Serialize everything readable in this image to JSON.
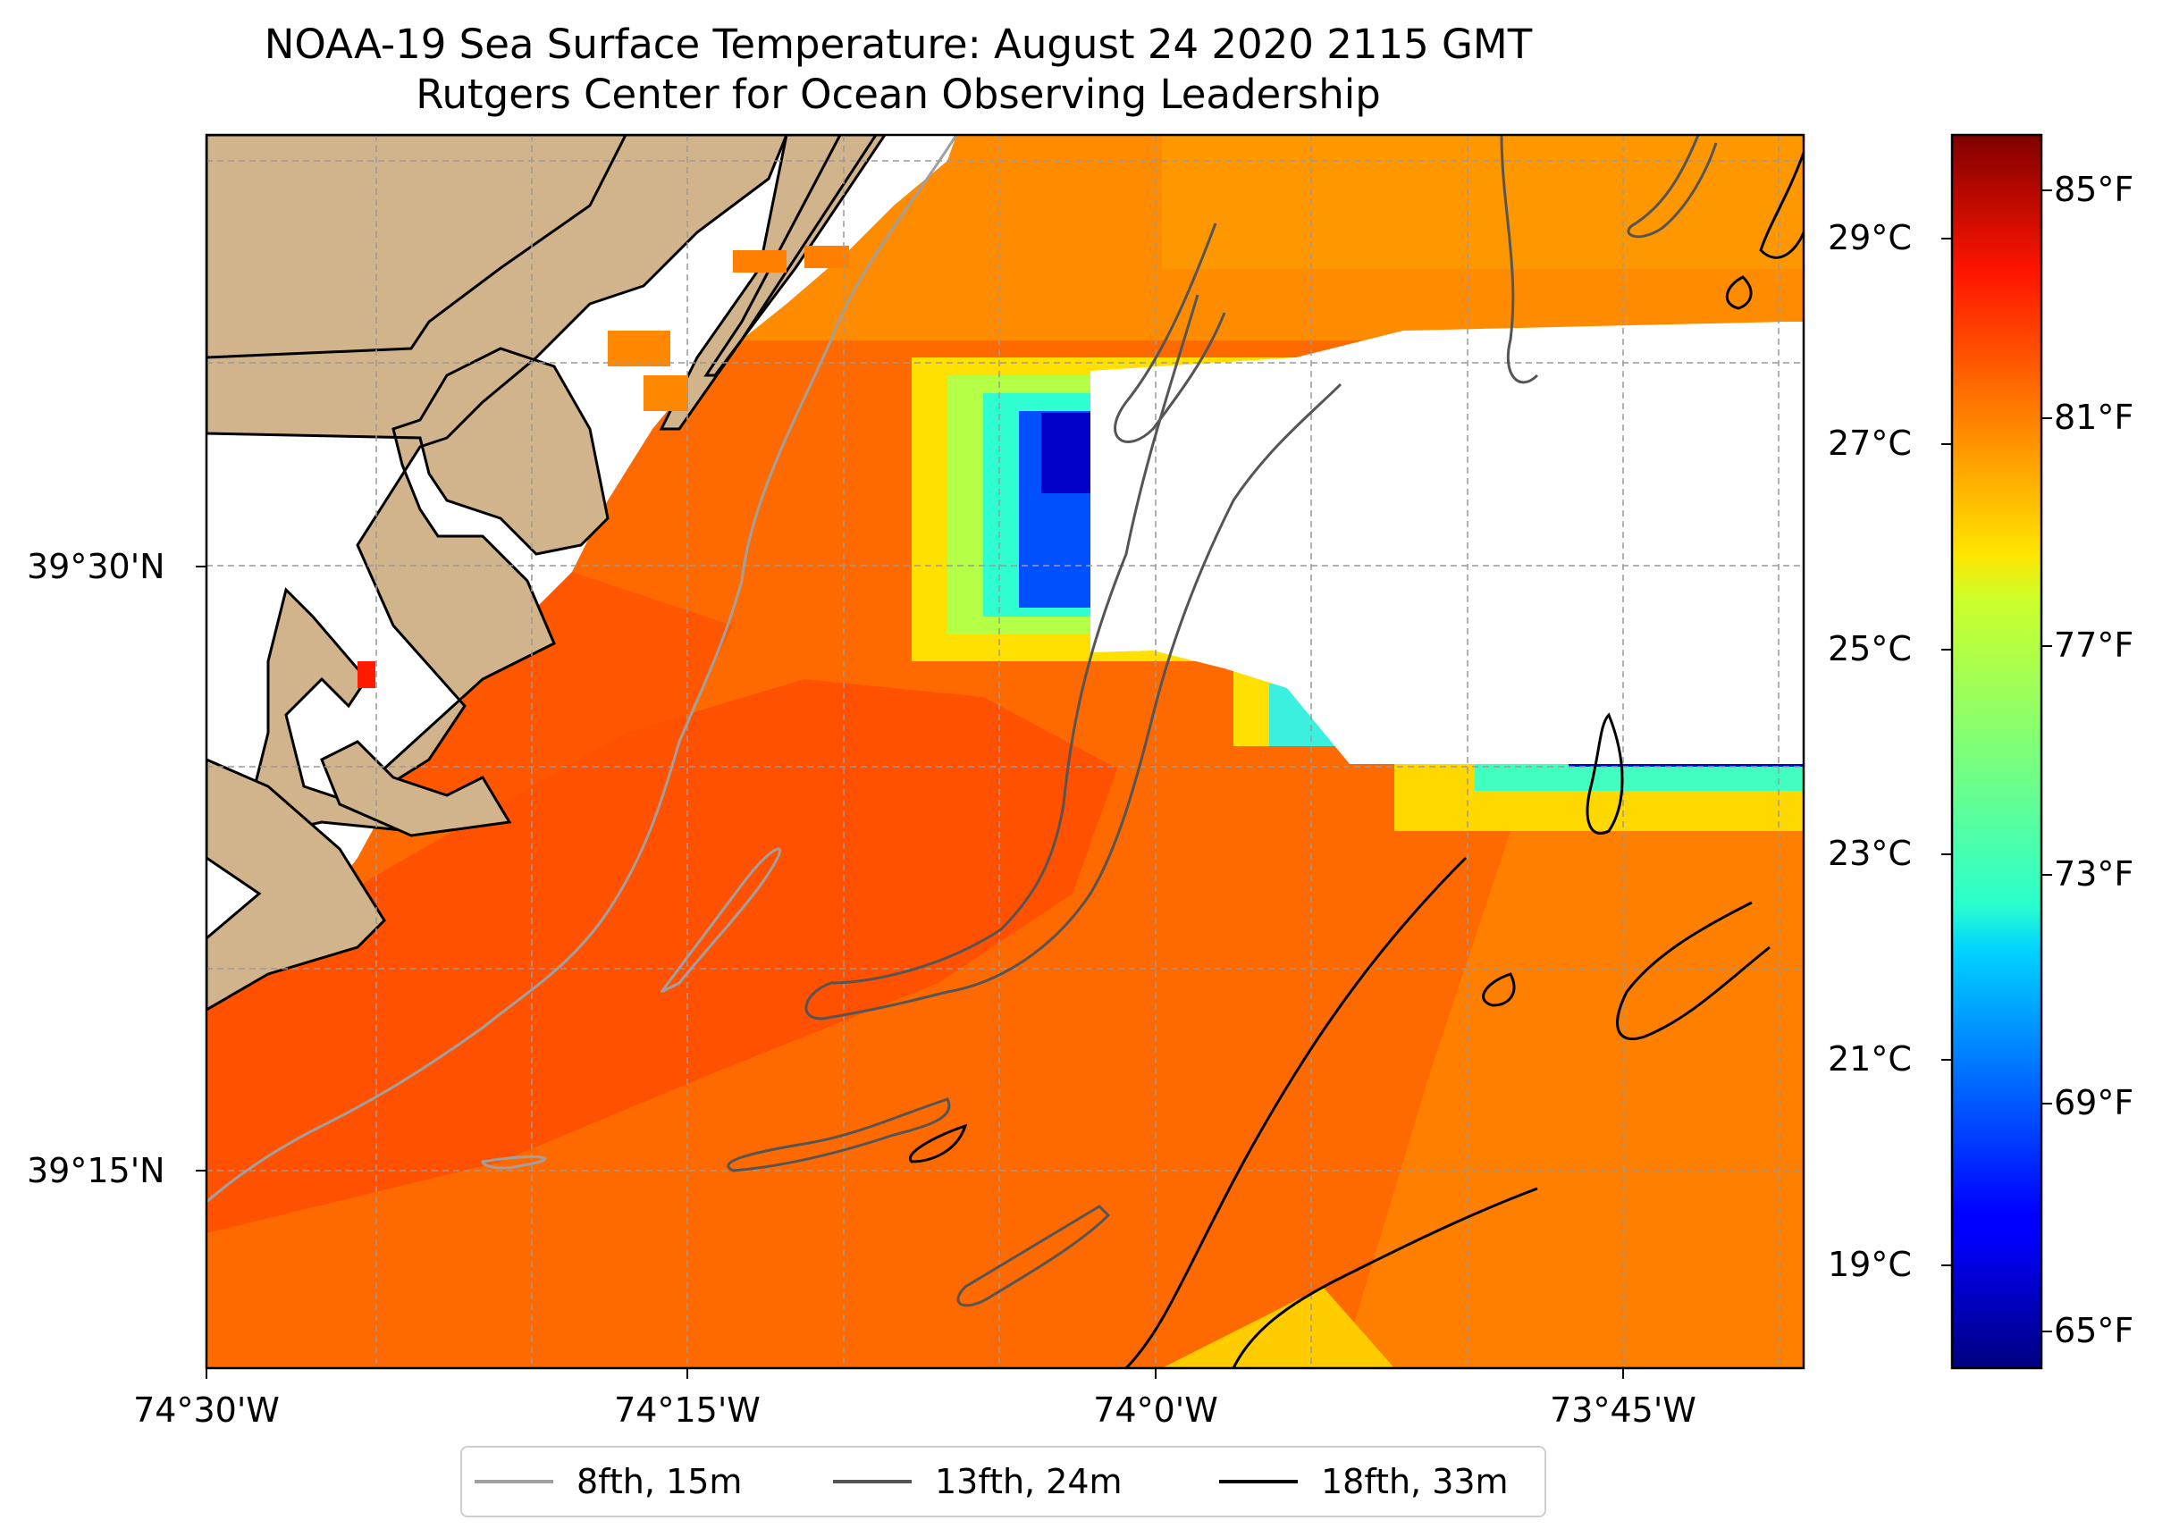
{
  "title": {
    "line1": "NOAA-19 Sea Surface Temperature: August 24 2020 2115 GMT",
    "line2": "Rutgers Center for Ocean Observing Leadership"
  },
  "map": {
    "projection": "plate carree",
    "extent_lon": [
      -74.5,
      -73.667
    ],
    "extent_lat": [
      39.067,
      39.6
    ],
    "land_color": "#d2b48c",
    "no_data_color": "#ffffff",
    "gridlines": "dashed gray",
    "lon_ticks": [
      "74°30'W",
      "74°15'W",
      "74°0'W",
      "73°45'W"
    ],
    "lat_ticks": [
      "39°30'N",
      "39°15'N"
    ],
    "data_summary": "Sea surface temperature mostly 26–28°C (orange to red-orange); cold upwelling patch near 74°04'W 39°33'N down to ~18°C; cloud-masked (white) region east of 74°W between 39°22'N and 39°35'N"
  },
  "colorbar": {
    "colormap": "jet",
    "celsius_ticks": [
      "29°C",
      "27°C",
      "25°C",
      "23°C",
      "21°C",
      "19°C"
    ],
    "fahrenheit_ticks": [
      "85°F",
      "81°F",
      "77°F",
      "73°F",
      "69°F",
      "65°F"
    ],
    "range_celsius": [
      17.8,
      29.9
    ]
  },
  "legend": {
    "items": [
      {
        "label": "8fth, 15m",
        "color": "#a0a0a0"
      },
      {
        "label": "13fth, 24m",
        "color": "#555555"
      },
      {
        "label": "18fth, 33m",
        "color": "#000000"
      }
    ]
  }
}
